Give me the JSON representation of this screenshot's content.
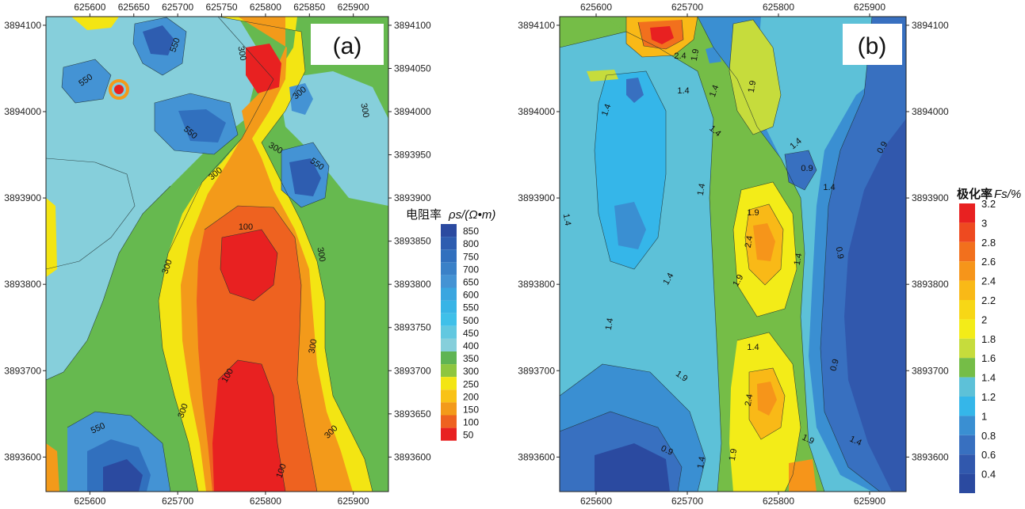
{
  "chart_data": [
    {
      "type": "heatmap",
      "panel_label": "(a)",
      "x_ticks": [
        625600,
        625650,
        625700,
        625750,
        625800,
        625850,
        625900
      ],
      "x_ticks_bottom": [
        625600,
        625700,
        625800,
        625900
      ],
      "y_ticks": [
        3894100,
        3894050,
        3894000,
        3893950,
        3893900,
        3893850,
        3893800,
        3893750,
        3893700,
        3893650,
        3893600
      ],
      "y_ticks_left": [
        3894100,
        3894000,
        3893900,
        3893800,
        3893700,
        3893600
      ],
      "xlim": [
        625550,
        625940
      ],
      "ylim": [
        3893560,
        3894110
      ],
      "legend_title_main": "电阻率",
      "legend_title_symbol": "ρs/(Ω•m)",
      "legend_levels": [
        850,
        800,
        750,
        700,
        650,
        600,
        550,
        500,
        450,
        400,
        350,
        300,
        250,
        200,
        150,
        100,
        50
      ],
      "legend_colors": [
        "#2b4aa0",
        "#2e5db0",
        "#3170be",
        "#3a81c8",
        "#4493d4",
        "#3aa6e0",
        "#38b4e6",
        "#3fc0e9",
        "#62c8e0",
        "#86cfdb",
        "#5fb453",
        "#8ec63f",
        "#f3e513",
        "#f9c216",
        "#f39a1a",
        "#ee6220",
        "#e82121"
      ],
      "contour_labels": [
        "550",
        "550",
        "300",
        "550",
        "300",
        "300",
        "300",
        "550",
        "300",
        "100",
        "300",
        "300",
        "300",
        "100",
        "300",
        "550",
        "300",
        "100"
      ]
    },
    {
      "type": "heatmap",
      "panel_label": "(b)",
      "x_ticks": [
        625600,
        625700,
        625800,
        625900
      ],
      "y_ticks": [
        3894100,
        3894000,
        3893900,
        3893800,
        3893700,
        3893600
      ],
      "xlim": [
        625560,
        625940
      ],
      "ylim": [
        3893560,
        3894110
      ],
      "legend_title_main": "极化率",
      "legend_title_symbol": "Fs/%",
      "legend_levels": [
        3.2,
        3,
        2.8,
        2.6,
        2.4,
        2.2,
        2,
        1.8,
        1.6,
        1.4,
        1.2,
        1,
        0.8,
        0.6,
        0.4
      ],
      "legend_colors": [
        "#e82121",
        "#ee4a20",
        "#f2701d",
        "#f6951a",
        "#f9b917",
        "#f7d716",
        "#f3ec18",
        "#c6dc3c",
        "#75bd47",
        "#5dc1d8",
        "#35b6e9",
        "#3a8fd2",
        "#3870c0",
        "#3158ad",
        "#2b4aa0"
      ],
      "contour_labels": [
        "2.4",
        "1.9",
        "1.4",
        "1.4",
        "1.4",
        "1.9",
        "1.4",
        "1.4",
        "0.9",
        "0.9",
        "1.4",
        "1.4",
        "1.4",
        "1.9",
        "2.4",
        "1.4",
        "0.9",
        "1.9",
        "1.4",
        "1.4",
        "1.9",
        "1.4",
        "0.9",
        "2.4",
        "1.9",
        "1.4",
        "0.9",
        "1.4",
        "1.9"
      ]
    }
  ]
}
